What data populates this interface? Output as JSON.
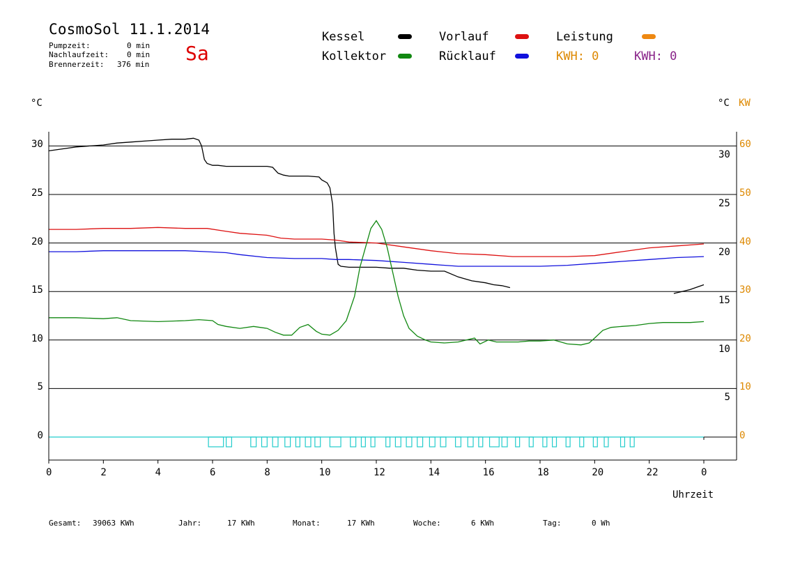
{
  "header": {
    "title": "CosmoSol 11.1.2014",
    "day": "Sa",
    "info": [
      {
        "label": "Pumpzeit:",
        "value": "0 min"
      },
      {
        "label": "Nachlaufzeit:",
        "value": "0 min"
      },
      {
        "label": "Brennerzeit:",
        "value": "376 min"
      }
    ]
  },
  "legend": {
    "kessel": {
      "label": "Kessel",
      "color": "#000000"
    },
    "kollektor": {
      "label": "Kollektor",
      "color": "#118811"
    },
    "vorlauf": {
      "label": "Vorlauf",
      "color": "#dd1111"
    },
    "ruecklauf": {
      "label": "Rücklauf",
      "color": "#1111dd"
    },
    "leistung": {
      "label": "Leistung",
      "color": "#ee8811"
    },
    "kwh_left": {
      "label": "KWH: 0",
      "color": "#dd8800"
    },
    "kwh_right": {
      "label": "KWH: 0",
      "color": "#882288"
    }
  },
  "chart_data": {
    "type": "line",
    "xlabel": "Uhrzeit",
    "ylabel_left": "°C",
    "ylabel_right_temp": "°C",
    "ylabel_right_power": "KW",
    "x_ticks": [
      "0",
      "2",
      "4",
      "6",
      "8",
      "10",
      "12",
      "14",
      "16",
      "18",
      "20",
      "22",
      "0"
    ],
    "y_ticks_left": [
      "0",
      "5",
      "10",
      "15",
      "20",
      "25",
      "30"
    ],
    "y_ticks_right": [
      "5",
      "10",
      "15",
      "20",
      "25",
      "30"
    ],
    "y_ticks_power": [
      "0",
      "10",
      "20",
      "30",
      "40",
      "50",
      "60"
    ],
    "xlim": [
      0,
      24
    ],
    "ylim": [
      -2.5,
      32
    ],
    "grid": true,
    "series": [
      {
        "name": "Kessel",
        "color": "#000000",
        "segments": [
          {
            "x": [
              0,
              0.5,
              1,
              1.5,
              2,
              2.5,
              3,
              3.5,
              4,
              4.5,
              5,
              5.3,
              5.5,
              5.6,
              5.7,
              5.8,
              6,
              6.2,
              6.5,
              7,
              7.5,
              8,
              8.2,
              8.4,
              8.6,
              8.8,
              9,
              9.5,
              9.9,
              10.0,
              10.2,
              10.3,
              10.4,
              10.45,
              10.5,
              10.6,
              10.7,
              11,
              11.5,
              12,
              12.5,
              13,
              13.5,
              14,
              14.5,
              15,
              15.5,
              16,
              16.3,
              16.6,
              16.9
            ],
            "y": [
              29.5,
              29.7,
              29.9,
              30,
              30.1,
              30.3,
              30.4,
              30.5,
              30.6,
              30.7,
              30.7,
              30.8,
              30.6,
              30,
              28.6,
              28.2,
              28,
              28,
              27.9,
              27.9,
              27.9,
              27.9,
              27.8,
              27.2,
              27,
              26.9,
              26.9,
              26.9,
              26.8,
              26.5,
              26.2,
              25.7,
              24,
              21,
              19.5,
              17.8,
              17.6,
              17.5,
              17.5,
              17.5,
              17.4,
              17.4,
              17.2,
              17.1,
              17.1,
              16.5,
              16.1,
              15.9,
              15.7,
              15.6,
              15.4
            ]
          },
          {
            "x": [
              22.9,
              23.2,
              23.5,
              23.7,
              24
            ],
            "y": [
              14.8,
              15,
              15.2,
              15.4,
              15.7
            ]
          }
        ]
      },
      {
        "name": "Vorlauf",
        "color": "#dd1111",
        "segments": [
          {
            "x": [
              0,
              1,
              2,
              3,
              4,
              5,
              5.8,
              6.5,
              7,
              8,
              8.5,
              9,
              10,
              10.5,
              11,
              12,
              13,
              14,
              15,
              16,
              17,
              18,
              19,
              20,
              21,
              22,
              23,
              24
            ],
            "y": [
              21.4,
              21.4,
              21.5,
              21.5,
              21.6,
              21.5,
              21.5,
              21.2,
              21,
              20.8,
              20.5,
              20.4,
              20.4,
              20.3,
              20.1,
              20,
              19.6,
              19.2,
              18.9,
              18.8,
              18.6,
              18.6,
              18.6,
              18.7,
              19.1,
              19.5,
              19.7,
              19.9
            ]
          }
        ]
      },
      {
        "name": "Rücklauf",
        "color": "#1111dd",
        "segments": [
          {
            "x": [
              0,
              1,
              2,
              3,
              4,
              5,
              5.8,
              6.5,
              7,
              8,
              9,
              10,
              10.5,
              11,
              12,
              13,
              14,
              15,
              16,
              17,
              18,
              19,
              20,
              21,
              22,
              23,
              24
            ],
            "y": [
              19.1,
              19.1,
              19.2,
              19.2,
              19.2,
              19.2,
              19.1,
              19,
              18.8,
              18.5,
              18.4,
              18.4,
              18.3,
              18.3,
              18.2,
              18,
              17.8,
              17.6,
              17.6,
              17.6,
              17.6,
              17.7,
              17.9,
              18.1,
              18.3,
              18.5,
              18.6
            ]
          }
        ]
      },
      {
        "name": "Kollektor",
        "color": "#118811",
        "segments": [
          {
            "x": [
              0,
              1,
              2,
              2.5,
              3,
              4,
              5,
              5.5,
              6,
              6.2,
              6.5,
              7,
              7.5,
              8,
              8.3,
              8.6,
              8.9,
              9.2,
              9.5,
              9.8,
              10,
              10.3,
              10.6,
              10.9,
              11.2,
              11.4,
              11.6,
              11.8,
              12,
              12.2,
              12.4,
              12.6,
              12.8,
              13,
              13.2,
              13.5,
              13.8,
              14,
              14.5,
              15,
              15.3,
              15.6,
              15.8,
              16.1,
              16.4,
              16.8,
              17.2,
              17.6,
              18,
              18.5,
              19,
              19.5,
              19.8,
              20,
              20.3,
              20.6,
              21,
              21.5,
              22,
              22.5,
              23,
              23.5,
              24
            ],
            "y": [
              12.3,
              12.3,
              12.2,
              12.3,
              12,
              11.9,
              12,
              12.1,
              12,
              11.6,
              11.4,
              11.2,
              11.4,
              11.2,
              10.8,
              10.5,
              10.5,
              11.3,
              11.6,
              10.9,
              10.6,
              10.5,
              11,
              12,
              14.5,
              17.5,
              19.5,
              21.5,
              22.3,
              21.4,
              19.5,
              17,
              14.5,
              12.5,
              11.2,
              10.4,
              10,
              9.8,
              9.7,
              9.8,
              10,
              10.2,
              9.6,
              10,
              9.8,
              9.8,
              9.8,
              9.9,
              9.9,
              10,
              9.6,
              9.5,
              9.7,
              10.2,
              11,
              11.3,
              11.4,
              11.5,
              11.7,
              11.8,
              11.8,
              11.8,
              11.9
            ]
          }
        ]
      }
    ],
    "pump_pulses": {
      "name": "Leistung",
      "color": "#22cccc",
      "pulses": [
        [
          5.85,
          6.4
        ],
        [
          6.5,
          6.7
        ],
        [
          7.4,
          7.6
        ],
        [
          7.8,
          8.0
        ],
        [
          8.2,
          8.4
        ],
        [
          8.65,
          8.85
        ],
        [
          9.05,
          9.2
        ],
        [
          9.4,
          9.6
        ],
        [
          9.75,
          9.95
        ],
        [
          10.3,
          10.7
        ],
        [
          11.05,
          11.25
        ],
        [
          11.45,
          11.6
        ],
        [
          11.8,
          11.95
        ],
        [
          12.35,
          12.5
        ],
        [
          12.7,
          12.9
        ],
        [
          13.1,
          13.3
        ],
        [
          13.5,
          13.7
        ],
        [
          13.95,
          14.15
        ],
        [
          14.35,
          14.55
        ],
        [
          14.9,
          15.1
        ],
        [
          15.35,
          15.55
        ],
        [
          15.75,
          15.9
        ],
        [
          16.15,
          16.5
        ],
        [
          16.6,
          16.8
        ],
        [
          17.1,
          17.25
        ],
        [
          17.6,
          17.75
        ],
        [
          18.1,
          18.25
        ],
        [
          18.45,
          18.6
        ],
        [
          18.95,
          19.1
        ],
        [
          19.45,
          19.6
        ],
        [
          19.95,
          20.1
        ],
        [
          20.35,
          20.5
        ],
        [
          20.95,
          21.1
        ],
        [
          21.3,
          21.45
        ]
      ]
    }
  },
  "footer": {
    "gesamt_label": "Gesamt:",
    "gesamt_value": "39063 KWh",
    "jahr_label": "Jahr:",
    "jahr_value": "17 KWh",
    "monat_label": "Monat:",
    "monat_value": "17 KWh",
    "woche_label": "Woche:",
    "woche_value": "6 KWh",
    "tag_label": "Tag:",
    "tag_value": "0 Wh"
  }
}
